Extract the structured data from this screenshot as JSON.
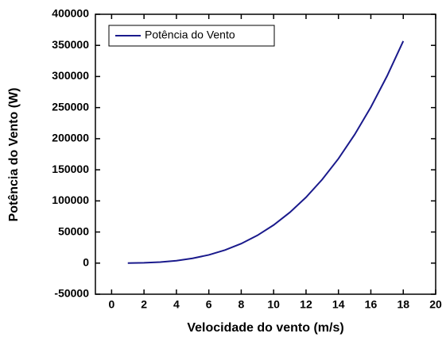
{
  "chart_data": {
    "type": "line",
    "x_label": "Velocidade do vento (m/s)",
    "y_label": "Potência do Vento (W)",
    "x": [
      1,
      2,
      3,
      4,
      5,
      6,
      7,
      8,
      9,
      10,
      11,
      12,
      13,
      14,
      15,
      16,
      17,
      18
    ],
    "series": [
      {
        "name": "Potência do Vento",
        "color": "#1a1a8c",
        "values": [
          61,
          490,
          1650,
          3920,
          7650,
          13200,
          21000,
          31300,
          44600,
          61200,
          81500,
          105800,
          134500,
          167900,
          206600,
          250700,
          300700,
          356900
        ]
      }
    ],
    "xlim": [
      -1,
      20
    ],
    "xticks": [
      0,
      2,
      4,
      6,
      8,
      10,
      12,
      14,
      16,
      18,
      20
    ],
    "ylim": [
      -50000,
      400000
    ],
    "yticks": [
      -50000,
      0,
      50000,
      100000,
      150000,
      200000,
      250000,
      300000,
      350000,
      400000
    ],
    "legend": "upper left"
  }
}
